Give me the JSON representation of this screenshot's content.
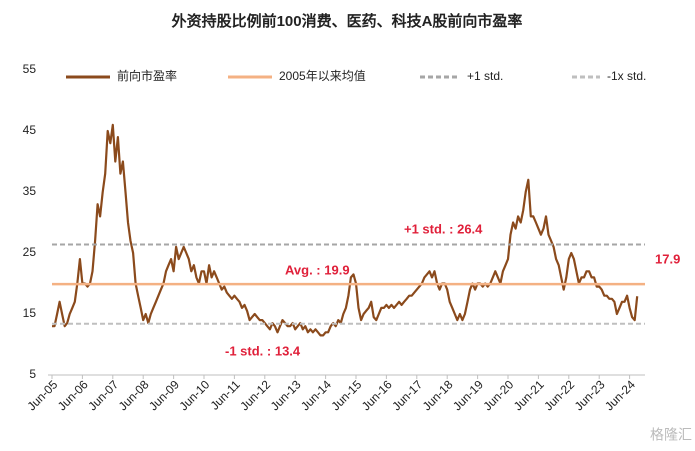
{
  "chart_data": {
    "type": "line",
    "title": "外资持股比例前100消费、医药、科技A股前向市盈率",
    "categories": [
      "Jun-05",
      null,
      null,
      null,
      null,
      null,
      null,
      null,
      null,
      null,
      null,
      null,
      "Jun-06",
      null,
      null,
      null,
      null,
      null,
      null,
      null,
      null,
      null,
      null,
      null,
      "Jun-07",
      null,
      null,
      null,
      null,
      null,
      null,
      null,
      null,
      null,
      null,
      null,
      "Jun-08",
      null,
      null,
      null,
      null,
      null,
      null,
      null,
      null,
      null,
      null,
      null,
      "Jun-09",
      null,
      null,
      null,
      null,
      null,
      null,
      null,
      null,
      null,
      null,
      null,
      "Jun-10",
      null,
      null,
      null,
      null,
      null,
      null,
      null,
      null,
      null,
      null,
      null,
      "Jun-11",
      null,
      null,
      null,
      null,
      null,
      null,
      null,
      null,
      null,
      null,
      null,
      "Jun-12",
      null,
      null,
      null,
      null,
      null,
      null,
      null,
      null,
      null,
      null,
      null,
      "Jun-13",
      null,
      null,
      null,
      null,
      null,
      null,
      null,
      null,
      null,
      null,
      null,
      "Jun-14",
      null,
      null,
      null,
      null,
      null,
      null,
      null,
      null,
      null,
      null,
      null,
      "Jun-15",
      null,
      null,
      null,
      null,
      null,
      null,
      null,
      null,
      null,
      null,
      null,
      "Jun-16",
      null,
      null,
      null,
      null,
      null,
      null,
      null,
      null,
      null,
      null,
      null,
      "Jun-17",
      null,
      null,
      null,
      null,
      null,
      null,
      null,
      null,
      null,
      null,
      null,
      "Jun-18",
      null,
      null,
      null,
      null,
      null,
      null,
      null,
      null,
      null,
      null,
      null,
      "Jun-19",
      null,
      null,
      null,
      null,
      null,
      null,
      null,
      null,
      null,
      null,
      null,
      "Jun-20",
      null,
      null,
      null,
      null,
      null,
      null,
      null,
      null,
      null,
      null,
      null,
      "Jun-21",
      null,
      null,
      null,
      null,
      null,
      null,
      null,
      null,
      null,
      null,
      null,
      "Jun-22",
      null,
      null,
      null,
      null,
      null,
      null,
      null,
      null,
      null,
      null,
      null,
      "Jun-23",
      null,
      null,
      null,
      null,
      null,
      null,
      null,
      null,
      null,
      null,
      null,
      "Jun-24",
      null,
      null,
      null
    ],
    "series": [
      {
        "name": "前向市盈率",
        "color": "#8b4a1c",
        "values": [
          13,
          13,
          15,
          17,
          15,
          13,
          13.5,
          15,
          16,
          17,
          20,
          24,
          20,
          20,
          19.5,
          20,
          22,
          27,
          33,
          31,
          35,
          38,
          45,
          43,
          46,
          40,
          44,
          38,
          40,
          35,
          30,
          27,
          25,
          20,
          18,
          16,
          14,
          15,
          13.5,
          15,
          16,
          17,
          18,
          19,
          20,
          22,
          23,
          24,
          22,
          26,
          24,
          25,
          26,
          25,
          24,
          22,
          23,
          21,
          20,
          22,
          22,
          20,
          23,
          21,
          22,
          21,
          20,
          19,
          19.5,
          18.5,
          18,
          17.5,
          18,
          17.5,
          17,
          16,
          16.5,
          15.5,
          14,
          14.5,
          15,
          14.5,
          14,
          14,
          13.5,
          13,
          12.5,
          13.5,
          13,
          12,
          13,
          14,
          13.5,
          13,
          13,
          13.5,
          12.5,
          13,
          13.5,
          12.5,
          13,
          12,
          12.5,
          12,
          12.5,
          12,
          11.5,
          11.5,
          12,
          12,
          13,
          13.5,
          13,
          14,
          13.5,
          15,
          16,
          18,
          21,
          21.5,
          20,
          16,
          14,
          15,
          15.5,
          16,
          17,
          14.5,
          14,
          15,
          16,
          16,
          16.5,
          16,
          16.5,
          16,
          16.5,
          17,
          16.5,
          17,
          17.5,
          18,
          18,
          18.5,
          19,
          19.5,
          20,
          21,
          21.5,
          22,
          21,
          22,
          20,
          19,
          20,
          20,
          19,
          17,
          16,
          15,
          14,
          15,
          14,
          15,
          17,
          19,
          20,
          19,
          20,
          20,
          19.5,
          20,
          19.5,
          20,
          21,
          22,
          21,
          20,
          22,
          23,
          24,
          28,
          30,
          29,
          31,
          30,
          32,
          35,
          37,
          31,
          31,
          30,
          29,
          28,
          29,
          31,
          28,
          27,
          26,
          24,
          23,
          21,
          19,
          21,
          24,
          25,
          24,
          22,
          20,
          21,
          21,
          22,
          22,
          21,
          21,
          19.5,
          19.5,
          19,
          18,
          18,
          17.5,
          17.5,
          17,
          15,
          16,
          17,
          17,
          18,
          16,
          14.5,
          14,
          17.9
        ]
      },
      {
        "name": "2005年以来均值",
        "color": "#f4b183",
        "value": 19.9
      },
      {
        "name": "+1 std.",
        "color": "#a6a6a6",
        "value": 26.4,
        "dashed": true
      },
      {
        "name": "-1x std.",
        "color": "#bfbfbf",
        "value": 13.4,
        "dashed": true
      }
    ],
    "annotations": [
      "+1 std. : 26.4",
      "Avg. : 19.9",
      "-1 std. : 13.4",
      "17.9"
    ],
    "watermark": "格隆汇",
    "ylim": [
      5,
      55
    ],
    "yticks": [
      5,
      15,
      25,
      35,
      45,
      55
    ]
  }
}
